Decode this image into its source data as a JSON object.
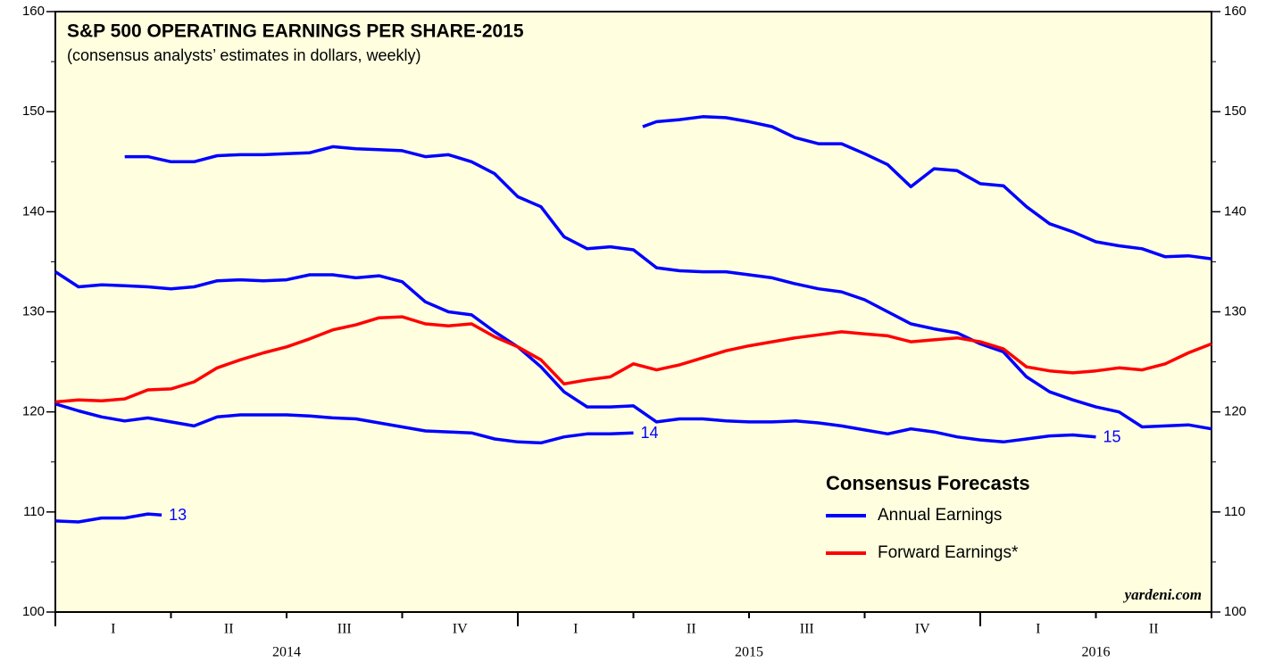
{
  "chart_data": {
    "type": "line",
    "title": "S&P 500 OPERATING EARNINGS PER SHARE-2015",
    "subtitle": "(consensus analysts’ estimates in dollars, weekly)",
    "source": "yardeni.com",
    "xlim": [
      2014,
      2016.5
    ],
    "xticks": [
      2014,
      2014.25,
      2014.5,
      2014.75,
      2015,
      2015.25,
      2015.5,
      2015.75,
      2016,
      2016.25,
      2016.5
    ],
    "quarter_labels": [
      {
        "value": 2014.125,
        "label": "I"
      },
      {
        "value": 2014.375,
        "label": "II"
      },
      {
        "value": 2014.625,
        "label": "III"
      },
      {
        "value": 2014.875,
        "label": "IV"
      },
      {
        "value": 2015.125,
        "label": "I"
      },
      {
        "value": 2015.375,
        "label": "II"
      },
      {
        "value": 2015.625,
        "label": "III"
      },
      {
        "value": 2015.875,
        "label": "IV"
      },
      {
        "value": 2016.125,
        "label": "I"
      },
      {
        "value": 2016.375,
        "label": "II"
      }
    ],
    "year_labels": [
      {
        "value": 2014.5,
        "label": "2014"
      },
      {
        "value": 2015.5,
        "label": "2015"
      },
      {
        "value": 2016.25,
        "label": "2016"
      }
    ],
    "ylim": [
      100,
      160
    ],
    "yticks": [
      100,
      110,
      120,
      130,
      140,
      150,
      160
    ],
    "yminor_ticks": [
      105,
      115,
      125,
      135,
      145,
      155
    ],
    "y2lim": [
      100,
      160
    ],
    "y2ticks": [
      100,
      110,
      120,
      130,
      140,
      150,
      160
    ],
    "legend": {
      "title": "Consensus Forecasts",
      "entries": [
        {
          "label": "Annual Earnings",
          "color": "#0000ff"
        },
        {
          "label": "Forward Earnings*",
          "color": "#ff0000"
        }
      ]
    },
    "series": [
      {
        "label": "13",
        "color": "#0000ff",
        "x": [
          2014,
          2014.05,
          2014.1,
          2014.15,
          2014.2,
          2014.23
        ],
        "values": [
          109.1,
          109.0,
          109.4,
          109.4,
          109.8,
          109.7
        ]
      },
      {
        "label": "14",
        "color": "#0000ff",
        "x": [
          2014,
          2014.05,
          2014.1,
          2014.15,
          2014.2,
          2014.25,
          2014.3,
          2014.35,
          2014.4,
          2014.45,
          2014.5,
          2014.55,
          2014.6,
          2014.65,
          2014.7,
          2014.75,
          2014.8,
          2014.85,
          2014.9,
          2014.95,
          2015,
          2015.05,
          2015.1,
          2015.15,
          2015.2,
          2015.25
        ],
        "values": [
          120.8,
          120.1,
          119.5,
          119.1,
          119.4,
          119.0,
          118.6,
          119.5,
          119.7,
          119.7,
          119.7,
          119.6,
          119.4,
          119.3,
          118.9,
          118.5,
          118.1,
          118.0,
          117.9,
          117.3,
          117.0,
          116.9,
          117.5,
          117.8,
          117.8,
          117.9
        ]
      },
      {
        "label": "15",
        "color": "#0000ff",
        "x": [
          2014,
          2014.05,
          2014.1,
          2014.15,
          2014.2,
          2014.25,
          2014.3,
          2014.35,
          2014.4,
          2014.45,
          2014.5,
          2014.55,
          2014.6,
          2014.65,
          2014.7,
          2014.75,
          2014.8,
          2014.85,
          2014.9,
          2014.95,
          2015,
          2015.05,
          2015.1,
          2015.15,
          2015.2,
          2015.25,
          2015.3,
          2015.35,
          2015.4,
          2015.45,
          2015.5,
          2015.55,
          2015.6,
          2015.65,
          2015.7,
          2015.75,
          2015.8,
          2015.85,
          2015.9,
          2015.95,
          2016,
          2016.05,
          2016.1,
          2016.15,
          2016.2,
          2016.25
        ],
        "values": [
          134.0,
          132.5,
          132.7,
          132.6,
          132.5,
          132.3,
          132.5,
          133.1,
          133.2,
          133.1,
          133.2,
          133.7,
          133.7,
          133.4,
          133.6,
          133.0,
          131.0,
          130.0,
          129.7,
          128.0,
          126.5,
          124.5,
          122.0,
          120.5,
          120.5,
          120.6,
          119.0,
          119.3,
          119.3,
          119.1,
          119.0,
          119.0,
          119.1,
          118.9,
          118.6,
          118.2,
          117.8,
          118.3,
          118.0,
          117.5,
          117.2,
          117.0,
          117.3,
          117.6,
          117.7,
          117.5
        ]
      },
      {
        "color": "#0000ff",
        "x": [
          2014.15,
          2014.2,
          2014.25,
          2014.3,
          2014.35,
          2014.4,
          2014.45,
          2014.5,
          2014.55,
          2014.6,
          2014.65,
          2014.7,
          2014.75,
          2014.8,
          2014.85,
          2014.9,
          2014.95,
          2015,
          2015.05,
          2015.1,
          2015.15,
          2015.2,
          2015.25,
          2015.3,
          2015.35,
          2015.4,
          2015.45,
          2015.5,
          2015.55,
          2015.6,
          2015.65,
          2015.7,
          2015.75,
          2015.8,
          2015.85,
          2015.9,
          2015.95,
          2016,
          2016.05,
          2016.1,
          2016.15,
          2016.2,
          2016.25,
          2016.3,
          2016.35,
          2016.4,
          2016.45,
          2016.5
        ],
        "values": [
          145.5,
          145.5,
          145.0,
          145.0,
          145.6,
          145.7,
          145.7,
          145.8,
          145.9,
          146.5,
          146.3,
          146.2,
          146.1,
          145.5,
          145.7,
          145.0,
          143.8,
          141.5,
          140.5,
          137.5,
          136.3,
          136.5,
          136.2,
          134.4,
          134.1,
          134.0,
          134.0,
          133.7,
          133.4,
          132.8,
          132.3,
          132.0,
          131.2,
          130.0,
          128.8,
          128.3,
          127.9,
          126.8,
          126.0,
          123.5,
          122.0,
          121.2,
          120.5,
          120.0,
          118.5,
          118.6,
          118.7,
          118.3
        ]
      },
      {
        "color": "#0000ff",
        "x": [
          2015.27,
          2015.3,
          2015.35,
          2015.4,
          2015.45,
          2015.5,
          2015.55,
          2015.6,
          2015.65,
          2015.7,
          2015.75,
          2015.8,
          2015.85,
          2015.9,
          2015.95,
          2016,
          2016.05,
          2016.1,
          2016.15,
          2016.2,
          2016.25,
          2016.3,
          2016.35,
          2016.4,
          2016.45,
          2016.5
        ],
        "values": [
          148.5,
          149.0,
          149.2,
          149.5,
          149.4,
          149.0,
          148.5,
          147.4,
          146.8,
          146.8,
          145.8,
          144.7,
          142.5,
          144.3,
          144.1,
          142.8,
          142.6,
          140.5,
          138.8,
          138.0,
          137.0,
          136.6,
          136.3,
          135.5,
          135.6,
          135.3
        ]
      },
      {
        "color": "#ff0000",
        "x": [
          2014,
          2014.05,
          2014.1,
          2014.15,
          2014.2,
          2014.25,
          2014.3,
          2014.35,
          2014.4,
          2014.45,
          2014.5,
          2014.55,
          2014.6,
          2014.65,
          2014.7,
          2014.75,
          2014.8,
          2014.85,
          2014.9,
          2014.95,
          2015,
          2015.05,
          2015.1,
          2015.15,
          2015.2,
          2015.25,
          2015.3,
          2015.35,
          2015.4,
          2015.45,
          2015.5,
          2015.55,
          2015.6,
          2015.65,
          2015.7,
          2015.75,
          2015.8,
          2015.85,
          2015.9,
          2015.95,
          2016,
          2016.05,
          2016.1,
          2016.15,
          2016.2,
          2016.25,
          2016.3,
          2016.35,
          2016.4,
          2016.45,
          2016.5
        ],
        "values": [
          121.0,
          121.2,
          121.1,
          121.3,
          122.2,
          122.3,
          123.0,
          124.4,
          125.2,
          125.9,
          126.5,
          127.3,
          128.2,
          128.7,
          129.4,
          129.5,
          128.8,
          128.6,
          128.8,
          127.5,
          126.5,
          125.2,
          122.8,
          123.2,
          123.5,
          124.8,
          124.2,
          124.7,
          125.4,
          126.1,
          126.6,
          127.0,
          127.4,
          127.7,
          128.0,
          127.8,
          127.6,
          127.0,
          127.2,
          127.4,
          127.0,
          126.3,
          124.5,
          124.1,
          123.9,
          124.1,
          124.4,
          124.2,
          124.8,
          125.9,
          126.8
        ]
      }
    ]
  }
}
